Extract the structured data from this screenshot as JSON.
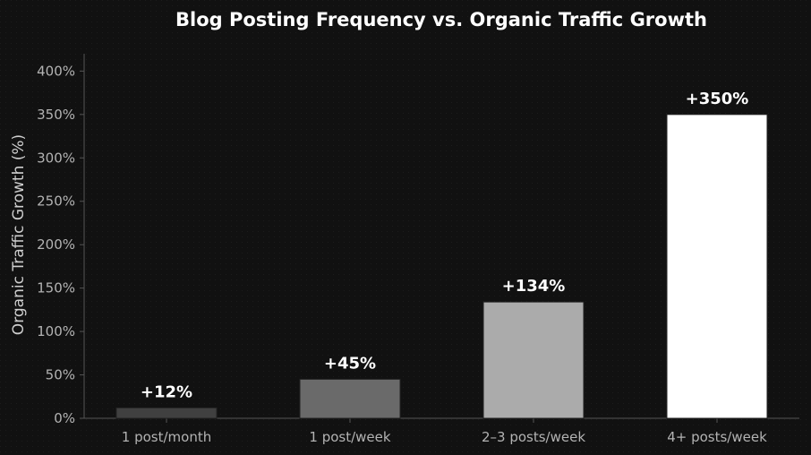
{
  "chart_data": {
    "type": "bar",
    "title": "Blog Posting Frequency vs. Organic Traffic Growth",
    "xlabel": "",
    "ylabel": "Organic Traffic Growth (%)",
    "categories": [
      "1 post/month",
      "1 post/week",
      "2–3 posts/week",
      "4+ posts/week"
    ],
    "values": [
      12,
      45,
      134,
      350
    ],
    "data_labels": [
      "+12%",
      "+45%",
      "+134%",
      "+350%"
    ],
    "ylim": [
      0,
      420
    ],
    "yticks": [
      0,
      50,
      100,
      150,
      200,
      250,
      300,
      350,
      400
    ],
    "ytick_labels": [
      "0%",
      "50%",
      "100%",
      "150%",
      "200%",
      "250%",
      "300%",
      "350%",
      "400%"
    ],
    "bar_colors": [
      "#404040",
      "#6a6a6a",
      "#ababab",
      "#ffffff"
    ],
    "background": "#111111",
    "grid": false,
    "legend": "none"
  }
}
